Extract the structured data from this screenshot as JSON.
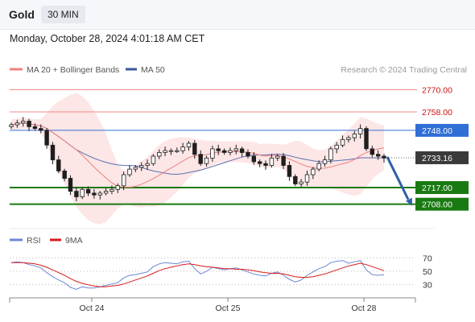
{
  "header": {
    "symbol": "Gold",
    "timeframe": "30 MIN",
    "timestamp": "Monday, October 28, 2024 4:01:18 AM CET"
  },
  "legend": {
    "ma20": "MA 20 + Bollinger Bands",
    "ma50": "MA 50",
    "credit": "Research © 2024 Trading Central"
  },
  "colors": {
    "resistance": "#f08a8a",
    "resistance_text": "#cc1111",
    "pivot": "#2f6fd6",
    "support": "#1a7a12",
    "ma20": "#f08080",
    "ma50": "#5a6fb0",
    "band_fill": "#fde3e3",
    "candle": "#1e1e1e",
    "current_price_bg": "#3a3a3a",
    "arrow": "#2f5fa8",
    "rsi": "#6b87d6",
    "rsi_ma": "#d61a1a"
  },
  "chart_data": [
    {
      "type": "candlestick",
      "ylim": [
        2700,
        2775
      ],
      "x_tick_labels": [
        "Oct 24",
        "Oct 25",
        "Oct 28"
      ],
      "levels": [
        {
          "label": "2770.00",
          "value": 2770,
          "kind": "resistance"
        },
        {
          "label": "2758.00",
          "value": 2758,
          "kind": "resistance"
        },
        {
          "label": "2748.00",
          "value": 2748,
          "kind": "pivot"
        },
        {
          "label": "2717.00",
          "value": 2717,
          "kind": "support"
        },
        {
          "label": "2708.00",
          "value": 2708,
          "kind": "support"
        }
      ],
      "current_price": {
        "label": "2733.16",
        "value": 2733.16
      },
      "forecast_target": 2708,
      "close": [
        2751,
        2752,
        2753,
        2750,
        2749,
        2748,
        2740,
        2732,
        2726,
        2722,
        2715,
        2712,
        2716,
        2714,
        2713,
        2714,
        2715,
        2716,
        2718,
        2724,
        2727,
        2728,
        2729,
        2730,
        2734,
        2736,
        2737,
        2737,
        2737,
        2739,
        2741,
        2735,
        2730,
        2733,
        2738,
        2737,
        2736,
        2737,
        2738,
        2736,
        2734,
        2731,
        2730,
        2729,
        2733,
        2734,
        2729,
        2723,
        2719,
        2720,
        2724,
        2727,
        2730,
        2732,
        2738,
        2740,
        2743,
        2744,
        2746,
        2749,
        2738,
        2735,
        2734,
        2733
      ]
    },
    {
      "type": "line",
      "name": "RSI",
      "legend": [
        "RSI",
        "9MA"
      ],
      "ylim": [
        20,
        80
      ],
      "y_tick_labels": [
        "70",
        "50",
        "30"
      ],
      "y_ticks": [
        70,
        50,
        30
      ],
      "rsi": [
        63,
        64,
        63,
        60,
        58,
        55,
        48,
        42,
        37,
        33,
        26,
        23,
        27,
        25,
        25,
        27,
        29,
        31,
        33,
        40,
        44,
        45,
        47,
        49,
        57,
        61,
        63,
        62,
        61,
        64,
        65,
        54,
        46,
        50,
        56,
        54,
        52,
        54,
        55,
        52,
        49,
        46,
        44,
        43,
        47,
        49,
        44,
        38,
        34,
        37,
        44,
        49,
        54,
        57,
        63,
        65,
        66,
        62,
        64,
        66,
        52,
        45,
        44,
        45
      ],
      "rsi_ma": [
        63,
        63,
        63,
        62,
        61,
        59,
        56,
        52,
        48,
        44,
        39,
        35,
        32,
        30,
        28,
        27,
        27,
        28,
        29,
        31,
        34,
        37,
        40,
        43,
        47,
        51,
        54,
        56,
        58,
        60,
        61,
        60,
        58,
        57,
        56,
        55,
        54,
        54,
        53,
        53,
        52,
        51,
        49,
        48,
        47,
        47,
        46,
        44,
        42,
        41,
        41,
        42,
        44,
        46,
        49,
        52,
        55,
        58,
        60,
        62,
        60,
        57,
        54,
        51
      ]
    }
  ]
}
